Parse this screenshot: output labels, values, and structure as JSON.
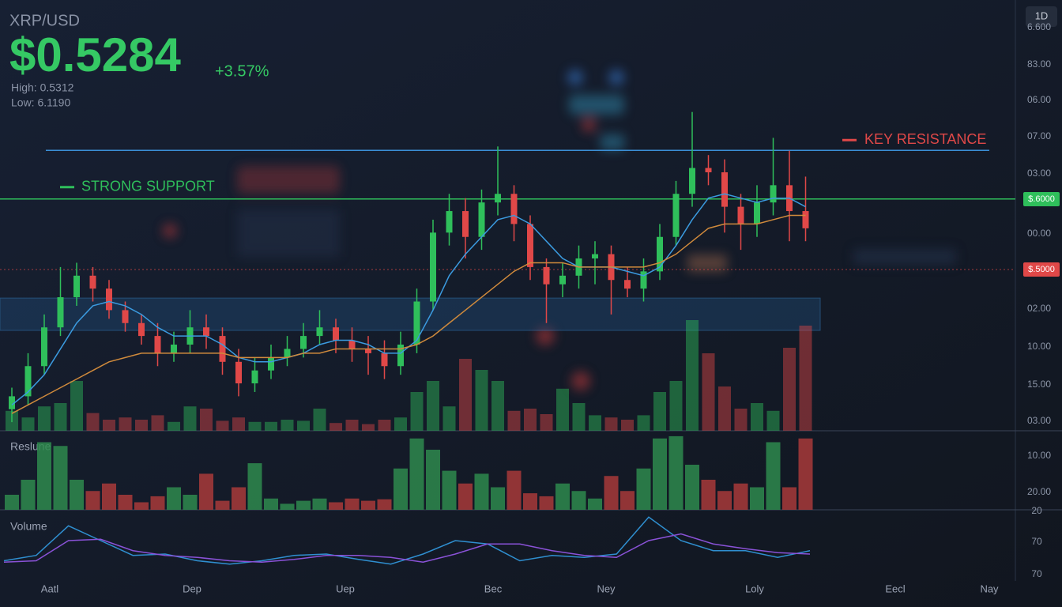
{
  "ticker": {
    "pair": "XRP/USD",
    "price": "$0.5284",
    "change": "+3.57%",
    "high": "High: 0.5312",
    "low": "Low: 6.1190",
    "timeframe": "1D"
  },
  "chart_data": {
    "type": "candlestick",
    "ylim": [
      0,
      100
    ],
    "up_color": "#2fbf5b",
    "down_color": "#e04848",
    "open": [
      5,
      8,
      15,
      24,
      31,
      36,
      33,
      28,
      25,
      22,
      18,
      20,
      24,
      22,
      16,
      11,
      14,
      17,
      19,
      22,
      24,
      21,
      19,
      18,
      15,
      20,
      30,
      46,
      51,
      45,
      53,
      55,
      48,
      38,
      34,
      36,
      40,
      41,
      35,
      33,
      37,
      45,
      55,
      61,
      60,
      52,
      48,
      53,
      57,
      51
    ],
    "high": [
      10,
      18,
      27,
      38,
      39,
      38,
      35,
      30,
      27,
      25,
      23,
      28,
      27,
      24,
      19,
      17,
      20,
      22,
      25,
      28,
      26,
      24,
      22,
      21,
      23,
      33,
      49,
      55,
      54,
      56,
      66,
      57,
      50,
      40,
      39,
      43,
      44,
      43,
      38,
      40,
      48,
      58,
      74,
      64,
      63,
      55,
      57,
      68,
      65,
      59
    ],
    "low": [
      2,
      6,
      13,
      22,
      29,
      30,
      26,
      23,
      20,
      15,
      16,
      18,
      19,
      13,
      8,
      9,
      12,
      15,
      17,
      20,
      18,
      16,
      13,
      12,
      13,
      18,
      28,
      43,
      40,
      42,
      50,
      44,
      35,
      25,
      31,
      33,
      34,
      27,
      31,
      30,
      35,
      43,
      52,
      57,
      46,
      42,
      45,
      50,
      44,
      44
    ],
    "close": [
      8,
      15,
      24,
      31,
      36,
      33,
      28,
      25,
      22,
      18,
      20,
      24,
      22,
      16,
      11,
      14,
      17,
      19,
      22,
      24,
      21,
      19,
      18,
      15,
      20,
      30,
      46,
      51,
      45,
      53,
      55,
      48,
      38,
      34,
      36,
      40,
      41,
      35,
      33,
      37,
      45,
      55,
      61,
      60,
      52,
      48,
      53,
      57,
      51,
      47
    ],
    "ma_fast": {
      "color": "#3b9be0",
      "values": [
        6,
        9,
        13,
        19,
        25,
        29,
        30,
        29,
        27,
        24,
        22,
        22,
        22,
        20,
        17,
        16,
        16,
        17,
        18,
        20,
        21,
        21,
        20,
        18,
        18,
        21,
        28,
        36,
        41,
        45,
        49,
        50,
        48,
        44,
        40,
        38,
        38,
        38,
        37,
        36,
        38,
        43,
        49,
        54,
        55,
        54,
        53,
        54,
        54,
        52
      ]
    },
    "ma_slow": {
      "color": "#d08a3c",
      "values": [
        4,
        6,
        8,
        10,
        12,
        14,
        16,
        17,
        18,
        18,
        18,
        18,
        18,
        18,
        17,
        17,
        17,
        17,
        18,
        18,
        19,
        19,
        19,
        19,
        19,
        20,
        22,
        25,
        28,
        31,
        34,
        37,
        39,
        39,
        39,
        38,
        38,
        38,
        38,
        38,
        39,
        41,
        44,
        47,
        48,
        48,
        48,
        49,
        50,
        50
      ]
    },
    "resistance": {
      "label": "KEY RESISTANCE",
      "value": 65.1,
      "color": "#3b8fd6"
    },
    "support": {
      "label": "STRONG SUPPORT",
      "value": 53.8,
      "color": "#2fbf5b"
    },
    "zone": {
      "low": 23.3,
      "high": 30.8
    },
    "price_badges": [
      {
        "label": "$.6000",
        "color": "#2fbf5b"
      },
      {
        "label": "$.5000",
        "color": "#e04848"
      }
    ],
    "y_axis_labels": [
      "6.600",
      "83.00",
      "06.00",
      "07.00",
      "03.00",
      "00.00",
      "02.00",
      "10.00",
      "15.00",
      "03.00"
    ],
    "overlay_volume": [
      18,
      12,
      22,
      25,
      45,
      16,
      10,
      12,
      10,
      14,
      8,
      22,
      20,
      9,
      12,
      8,
      8,
      10,
      9,
      20,
      7,
      10,
      6,
      10,
      12,
      35,
      45,
      22,
      65,
      55,
      45,
      18,
      20,
      15,
      38,
      25,
      14,
      12,
      10,
      14,
      35,
      45,
      100,
      70,
      40,
      20,
      25,
      18,
      75,
      95
    ],
    "volume_panel": {
      "label": "Reslune",
      "ylim": [
        0,
        100
      ],
      "axis_labels": [
        "10.00",
        "20.00"
      ],
      "values": [
        20,
        40,
        90,
        85,
        40,
        25,
        35,
        20,
        10,
        18,
        30,
        20,
        48,
        12,
        30,
        62,
        15,
        8,
        12,
        15,
        10,
        15,
        12,
        14,
        55,
        95,
        80,
        52,
        35,
        48,
        30,
        52,
        22,
        18,
        35,
        25,
        15,
        45,
        25,
        55,
        95,
        98,
        60,
        40,
        25,
        35,
        30,
        90,
        30,
        95
      ]
    },
    "oscillator": {
      "label": "Volume",
      "ylim": [
        0,
        100
      ],
      "axis_labels": [
        "20",
        "70",
        "70"
      ],
      "series": [
        {
          "color": "#2f8fd0",
          "values": [
            30,
            38,
            82,
            60,
            38,
            40,
            30,
            25,
            30,
            38,
            40,
            32,
            25,
            40,
            60,
            55,
            30,
            38,
            35,
            40,
            95,
            60,
            45,
            45,
            35,
            45
          ]
        },
        {
          "color": "#8a52d8",
          "values": [
            28,
            30,
            60,
            62,
            45,
            38,
            35,
            30,
            28,
            32,
            38,
            38,
            35,
            28,
            40,
            55,
            55,
            45,
            38,
            35,
            60,
            70,
            55,
            48,
            42,
            40
          ]
        }
      ]
    },
    "x_labels": [
      "Aatl",
      "Dep",
      "Uep",
      "Bec",
      "Ney",
      "Loly",
      "Eecl",
      "Nay"
    ]
  }
}
